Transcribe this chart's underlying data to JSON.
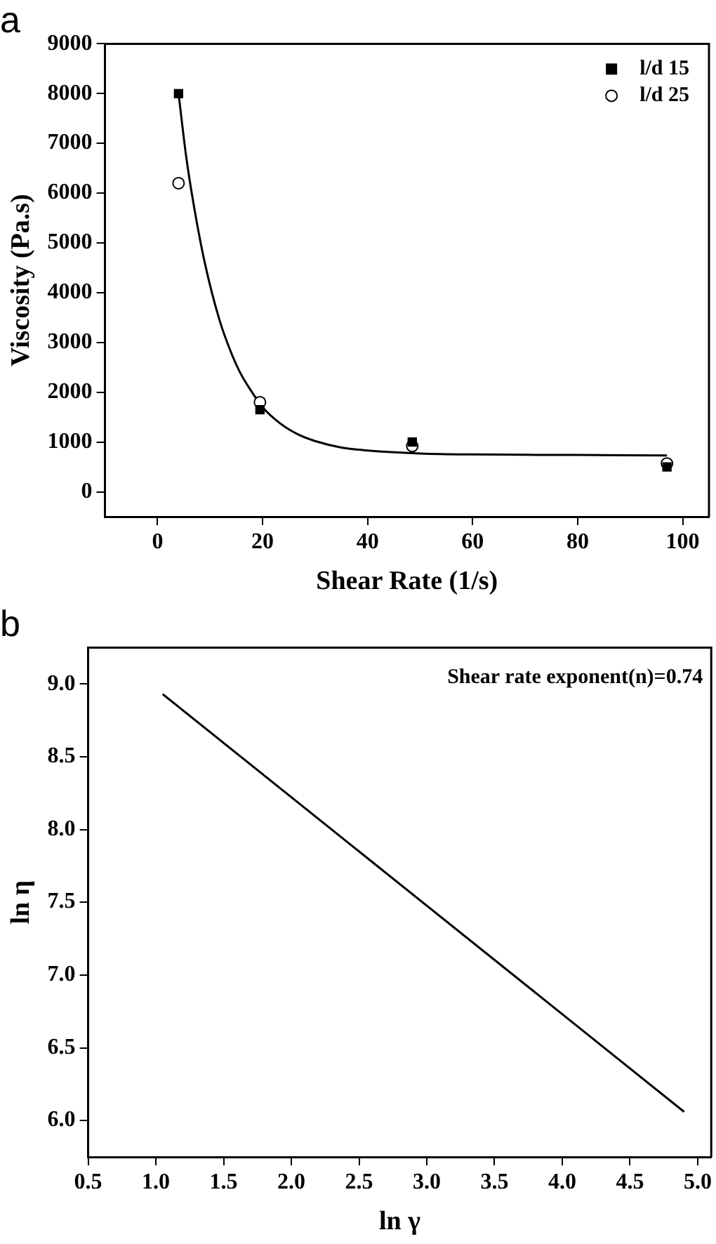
{
  "chart_data": [
    {
      "type": "scatter",
      "title": "a",
      "xlabel": "Shear Rate (1/s)",
      "ylabel": "Viscosity (Pa.s)",
      "xlim": [
        -10,
        105
      ],
      "xticks": [
        0,
        20,
        40,
        60,
        80,
        100
      ],
      "ylim": [
        -500,
        9000
      ],
      "yticks": [
        0,
        1000,
        2000,
        3000,
        4000,
        5000,
        6000,
        7000,
        8000,
        9000
      ],
      "grid": false,
      "legend": "top right",
      "series": [
        {
          "name": "l/d 15",
          "color": "#000000",
          "marker": "square",
          "x": [
            4,
            19.5,
            48.5,
            97
          ],
          "values": [
            8000,
            1650,
            1000,
            500
          ]
        },
        {
          "name": "l/d 25",
          "color": "#000000",
          "marker": "circle",
          "x": [
            4,
            19.5,
            48.5,
            97
          ],
          "values": [
            6200,
            1800,
            920,
            570
          ]
        },
        {
          "type": "line",
          "color": "#000000",
          "marker": "none",
          "x": [
            4,
            5.5,
            7,
            9,
            11.8,
            14,
            15.7,
            18,
            20,
            23.4,
            27,
            30,
            35,
            40,
            50,
            60,
            80,
            97
          ],
          "values": [
            8000,
            6700,
            5700,
            4600,
            3450,
            2800,
            2400,
            2000,
            1700,
            1370,
            1140,
            1020,
            890,
            830,
            770,
            750,
            740,
            730
          ]
        }
      ]
    },
    {
      "type": "line",
      "title": "b",
      "xlabel": "ln γ",
      "ylabel": "ln η",
      "xlim": [
        0.5,
        5.1
      ],
      "xticks": [
        {
          "value": 0.5,
          "label": "0.5"
        },
        {
          "value": 1,
          "label": "1.0"
        },
        {
          "value": 1.5,
          "label": "1.5"
        },
        {
          "value": 2,
          "label": "2.0"
        },
        {
          "value": 2.5,
          "label": "2.5"
        },
        {
          "value": 3,
          "label": "3.0"
        },
        {
          "value": 3.5,
          "label": "3.5"
        },
        {
          "value": 4,
          "label": "4.0"
        },
        {
          "value": 4.5,
          "label": "4.5"
        },
        {
          "value": 5,
          "label": "5.0"
        }
      ],
      "ylim": [
        5.75,
        9.25
      ],
      "yticks": [
        {
          "value": 6,
          "label": "6.0"
        },
        {
          "value": 6.5,
          "label": "6.5"
        },
        {
          "value": 7,
          "label": "7.0"
        },
        {
          "value": 7.5,
          "label": "7.5"
        },
        {
          "value": 8,
          "label": "8.0"
        },
        {
          "value": 8.5,
          "label": "8.5"
        },
        {
          "value": 9,
          "label": "9.0"
        }
      ],
      "grid": false,
      "legend": false,
      "marker": "none",
      "annotations": [
        "Shear rate exponent(n)=0.74"
      ],
      "series": [
        {
          "color": "#000000",
          "x": [
            1.05,
            4.9
          ],
          "values": [
            8.93,
            6.06
          ]
        }
      ]
    }
  ]
}
